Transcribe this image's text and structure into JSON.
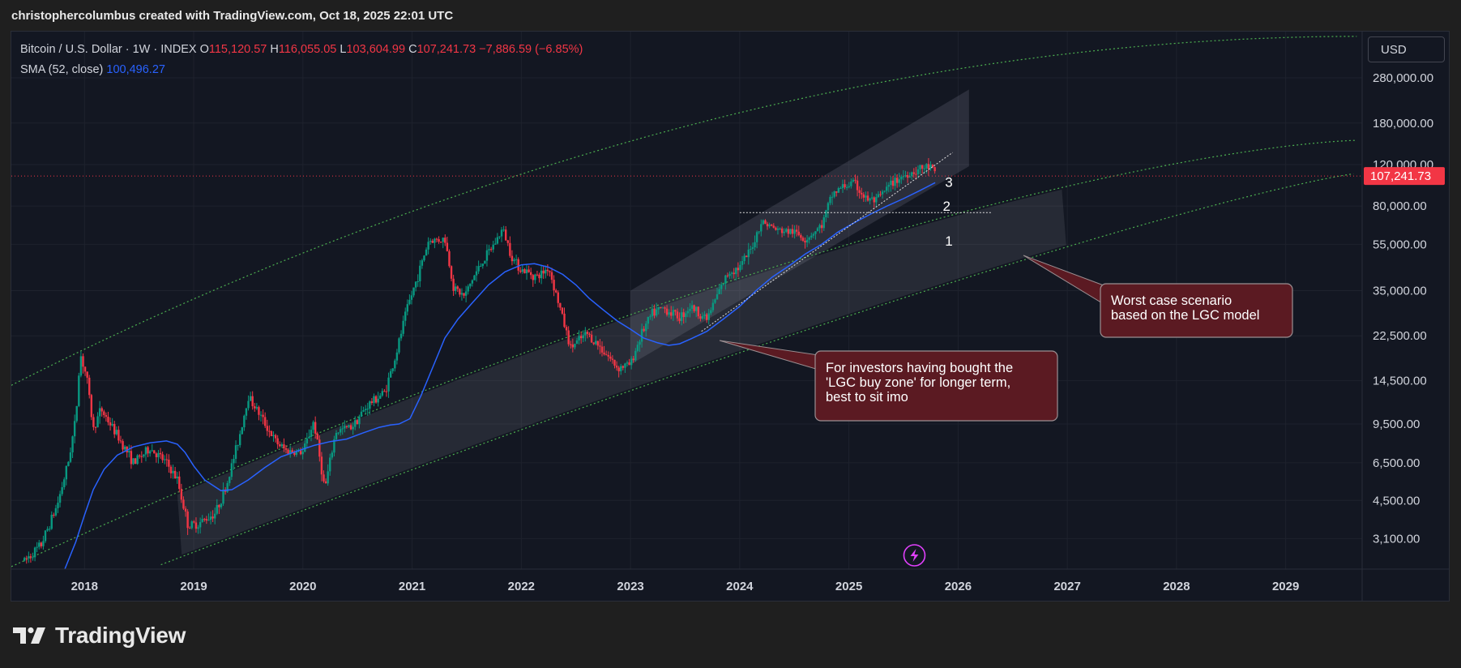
{
  "header": {
    "attribution": "christophercolumbus created with TradingView.com, Oct 18, 2025 22:01 UTC"
  },
  "legend": {
    "symbol": "Bitcoin / U.S. Dollar · 1W · INDEX",
    "o_label": "O",
    "o_value": "115,120.57",
    "h_label": "H",
    "h_value": "116,055.05",
    "l_label": "L",
    "l_value": "103,604.99",
    "c_label": "C",
    "c_value": "107,241.73",
    "change": "−7,886.59 (−6.85%)",
    "sma_label": "SMA (52, close)",
    "sma_value": "100,496.27"
  },
  "currency_button": "USD",
  "watermark": "TradingView",
  "colors": {
    "background": "#131722",
    "up": "#089981",
    "down": "#f23645",
    "sma": "#2962ff",
    "band": "#4caf50",
    "callout_bg": "#5b1a22"
  },
  "annotations": {
    "callout_1": [
      "For investors having bought the",
      "'LGC buy zone' for longer term,",
      "best to sit imo"
    ],
    "callout_2": [
      "Worst case scenario",
      "based on the LGC model"
    ],
    "levels": [
      "3",
      "2",
      "1"
    ]
  },
  "chart_data": {
    "type": "candlestick",
    "title": "Bitcoin / U.S. Dollar · 1W · INDEX",
    "y_scale": "log",
    "ylim": [
      2300,
      440000
    ],
    "xlim": [
      2017.33,
      2029.7
    ],
    "x_ticks": [
      "2018",
      "2019",
      "2020",
      "2021",
      "2022",
      "2023",
      "2024",
      "2025",
      "2026",
      "2027",
      "2028",
      "2029"
    ],
    "y_ticks": [
      {
        "value": 280000,
        "label": "280,000.00"
      },
      {
        "value": 180000,
        "label": "180,000.00"
      },
      {
        "value": 120000,
        "label": "120,000.00"
      },
      {
        "value": 80000,
        "label": "80,000.00"
      },
      {
        "value": 55000,
        "label": "55,000.00"
      },
      {
        "value": 35000,
        "label": "35,000.00"
      },
      {
        "value": 22500,
        "label": "22,500.00"
      },
      {
        "value": 14500,
        "label": "14,500.00"
      },
      {
        "value": 9500,
        "label": "9,500.00"
      },
      {
        "value": 6500,
        "label": "6,500.00"
      },
      {
        "value": 4500,
        "label": "4,500.00"
      },
      {
        "value": 3100,
        "label": "3,100.00"
      }
    ],
    "last_price": {
      "value": 107241.73,
      "label": "107,241.73"
    },
    "price_path": [
      [
        2017.45,
        2500
      ],
      [
        2017.6,
        2900
      ],
      [
        2017.75,
        4300
      ],
      [
        2017.85,
        6500
      ],
      [
        2017.92,
        10000
      ],
      [
        2017.96,
        19000
      ],
      [
        2018.02,
        15000
      ],
      [
        2018.08,
        9000
      ],
      [
        2018.15,
        11000
      ],
      [
        2018.3,
        8500
      ],
      [
        2018.45,
        6500
      ],
      [
        2018.6,
        7500
      ],
      [
        2018.75,
        6500
      ],
      [
        2018.85,
        5500
      ],
      [
        2018.95,
        3500
      ],
      [
        2019.05,
        3600
      ],
      [
        2019.2,
        4000
      ],
      [
        2019.3,
        5200
      ],
      [
        2019.42,
        8500
      ],
      [
        2019.5,
        12500
      ],
      [
        2019.6,
        10500
      ],
      [
        2019.75,
        8000
      ],
      [
        2019.85,
        7300
      ],
      [
        2020.0,
        7200
      ],
      [
        2020.1,
        9800
      ],
      [
        2020.2,
        5000
      ],
      [
        2020.3,
        8800
      ],
      [
        2020.45,
        9300
      ],
      [
        2020.6,
        11500
      ],
      [
        2020.75,
        13000
      ],
      [
        2020.85,
        18500
      ],
      [
        2020.95,
        29000
      ],
      [
        2021.05,
        40000
      ],
      [
        2021.15,
        57000
      ],
      [
        2021.3,
        58000
      ],
      [
        2021.38,
        36000
      ],
      [
        2021.48,
        33000
      ],
      [
        2021.55,
        39000
      ],
      [
        2021.65,
        47000
      ],
      [
        2021.75,
        55000
      ],
      [
        2021.83,
        64000
      ],
      [
        2021.92,
        48000
      ],
      [
        2022.0,
        43000
      ],
      [
        2022.15,
        40000
      ],
      [
        2022.25,
        44000
      ],
      [
        2022.35,
        30000
      ],
      [
        2022.45,
        20000
      ],
      [
        2022.6,
        23000
      ],
      [
        2022.75,
        19500
      ],
      [
        2022.88,
        16500
      ],
      [
        2023.0,
        17000
      ],
      [
        2023.1,
        23000
      ],
      [
        2023.2,
        28000
      ],
      [
        2023.3,
        29500
      ],
      [
        2023.45,
        27000
      ],
      [
        2023.55,
        30000
      ],
      [
        2023.7,
        26500
      ],
      [
        2023.8,
        34000
      ],
      [
        2023.9,
        42000
      ],
      [
        2024.0,
        44000
      ],
      [
        2024.1,
        52000
      ],
      [
        2024.2,
        69000
      ],
      [
        2024.35,
        63000
      ],
      [
        2024.5,
        62000
      ],
      [
        2024.6,
        58000
      ],
      [
        2024.75,
        66000
      ],
      [
        2024.85,
        90000
      ],
      [
        2024.95,
        97000
      ],
      [
        2025.05,
        100000
      ],
      [
        2025.15,
        86000
      ],
      [
        2025.25,
        84000
      ],
      [
        2025.35,
        95000
      ],
      [
        2025.45,
        105000
      ],
      [
        2025.55,
        110000
      ],
      [
        2025.65,
        115000
      ],
      [
        2025.75,
        118000
      ],
      [
        2025.79,
        107241.73
      ]
    ],
    "series": [
      {
        "name": "SMA (52, close)",
        "points": [
          [
            2017.82,
            2300
          ],
          [
            2017.92,
            3000
          ],
          [
            2018.0,
            3900
          ],
          [
            2018.08,
            5000
          ],
          [
            2018.18,
            6100
          ],
          [
            2018.3,
            7000
          ],
          [
            2018.45,
            7600
          ],
          [
            2018.6,
            7900
          ],
          [
            2018.75,
            8050
          ],
          [
            2018.85,
            7800
          ],
          [
            2018.92,
            7200
          ],
          [
            2019.0,
            6300
          ],
          [
            2019.1,
            5500
          ],
          [
            2019.25,
            4950
          ],
          [
            2019.35,
            5000
          ],
          [
            2019.5,
            5500
          ],
          [
            2019.65,
            6200
          ],
          [
            2019.8,
            6900
          ],
          [
            2019.95,
            7300
          ],
          [
            2020.1,
            7700
          ],
          [
            2020.25,
            8000
          ],
          [
            2020.4,
            8200
          ],
          [
            2020.55,
            8700
          ],
          [
            2020.7,
            9200
          ],
          [
            2020.8,
            9400
          ],
          [
            2020.88,
            9500
          ],
          [
            2020.98,
            10000
          ],
          [
            2021.08,
            12500
          ],
          [
            2021.2,
            17000
          ],
          [
            2021.3,
            22000
          ],
          [
            2021.42,
            26500
          ],
          [
            2021.55,
            31000
          ],
          [
            2021.7,
            37000
          ],
          [
            2021.85,
            42000
          ],
          [
            2022.0,
            45000
          ],
          [
            2022.12,
            45500
          ],
          [
            2022.25,
            44000
          ],
          [
            2022.38,
            41000
          ],
          [
            2022.5,
            37000
          ],
          [
            2022.62,
            32500
          ],
          [
            2022.75,
            29000
          ],
          [
            2022.88,
            26000
          ],
          [
            2023.0,
            24000
          ],
          [
            2023.12,
            22000
          ],
          [
            2023.25,
            21000
          ],
          [
            2023.35,
            20500
          ],
          [
            2023.45,
            20800
          ],
          [
            2023.55,
            21800
          ],
          [
            2023.7,
            23500
          ],
          [
            2023.85,
            26500
          ],
          [
            2024.0,
            30000
          ],
          [
            2024.15,
            35000
          ],
          [
            2024.3,
            40000
          ],
          [
            2024.45,
            44500
          ],
          [
            2024.6,
            50000
          ],
          [
            2024.75,
            55000
          ],
          [
            2024.9,
            62000
          ],
          [
            2025.05,
            68000
          ],
          [
            2025.2,
            74000
          ],
          [
            2025.35,
            80000
          ],
          [
            2025.5,
            86000
          ],
          [
            2025.65,
            93000
          ],
          [
            2025.79,
            100496.27
          ]
        ]
      }
    ],
    "grid": true
  }
}
